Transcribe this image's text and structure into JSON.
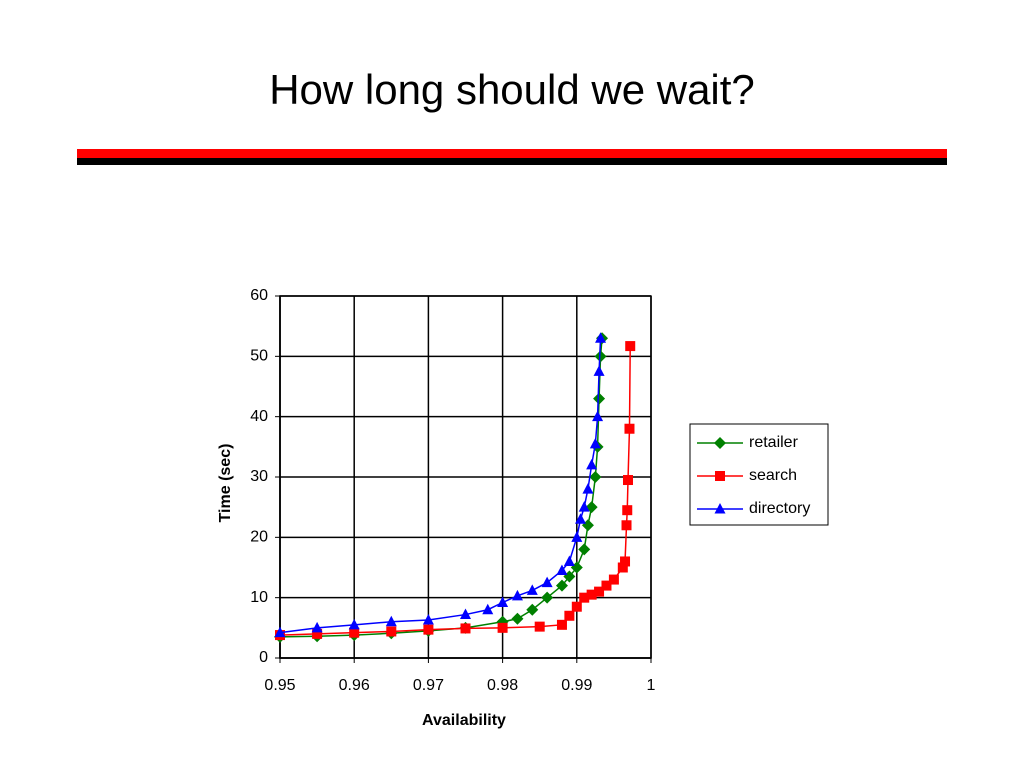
{
  "slide_title": "How long should we wait?",
  "chart_data": {
    "type": "line",
    "x_label": "Availability",
    "y_label": "Time (sec)",
    "xlim": [
      0.95,
      1
    ],
    "xticks": [
      0.95,
      0.96,
      0.97,
      0.98,
      0.99,
      1
    ],
    "ylim": [
      0,
      60
    ],
    "yticks": [
      0,
      10,
      20,
      30,
      40,
      50,
      60
    ],
    "grid": true,
    "legend": "right",
    "series": [
      {
        "name": "retailer",
        "color": "#008000",
        "marker": "diamond",
        "x": [
          0.95,
          0.955,
          0.96,
          0.965,
          0.97,
          0.975,
          0.98,
          0.982,
          0.984,
          0.986,
          0.988,
          0.989,
          0.99,
          0.991,
          0.9915,
          0.992,
          0.9925,
          0.9928,
          0.993,
          0.9932,
          0.9934
        ],
        "values": [
          3.5,
          3.6,
          3.8,
          4.1,
          4.5,
          5,
          6,
          6.5,
          8,
          10,
          12,
          13.5,
          15,
          18,
          22,
          25,
          30,
          35,
          43,
          50,
          53
        ]
      },
      {
        "name": "search",
        "color": "#ff0000",
        "marker": "square",
        "x": [
          0.95,
          0.955,
          0.96,
          0.965,
          0.97,
          0.975,
          0.98,
          0.985,
          0.988,
          0.989,
          0.99,
          0.991,
          0.992,
          0.993,
          0.994,
          0.995,
          0.9962,
          0.9965,
          0.9967,
          0.9968,
          0.9969,
          0.9971,
          0.9972
        ],
        "values": [
          3.8,
          4,
          4.2,
          4.4,
          4.7,
          4.9,
          5,
          5.2,
          5.5,
          7,
          8.5,
          10,
          10.5,
          11,
          12,
          13,
          15,
          16,
          22,
          24.5,
          29.5,
          38,
          51.7
        ]
      },
      {
        "name": "directory",
        "color": "#0000ff",
        "marker": "triangle",
        "x": [
          0.95,
          0.955,
          0.96,
          0.965,
          0.97,
          0.975,
          0.978,
          0.98,
          0.982,
          0.984,
          0.986,
          0.988,
          0.989,
          0.99,
          0.9905,
          0.991,
          0.9915,
          0.992,
          0.9925,
          0.9928,
          0.993,
          0.9932
        ],
        "values": [
          4.2,
          5,
          5.5,
          6,
          6.3,
          7.2,
          8,
          9.2,
          10.3,
          11.2,
          12.5,
          14.5,
          16,
          20,
          23,
          25,
          28,
          32,
          35.5,
          40,
          47.5,
          53
        ]
      }
    ]
  }
}
